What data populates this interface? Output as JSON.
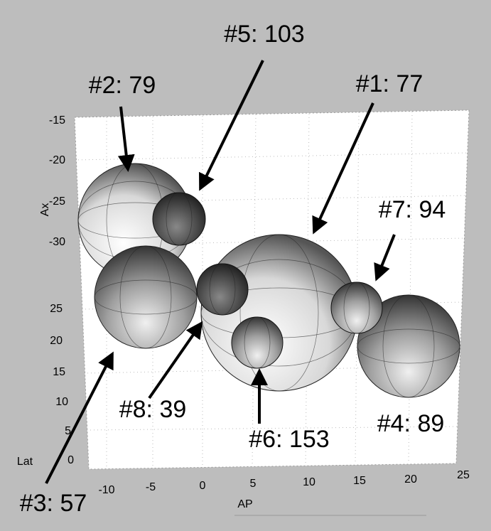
{
  "labels": [
    "#5: 103",
    "#2: 79",
    "#1: 77",
    "#7: 94",
    "#8: 39",
    "#6: 153",
    "#4: 89",
    "#3: 57"
  ],
  "axes": {
    "ax": {
      "title": "Ax",
      "ticks": [
        "-15",
        "-20",
        "-25",
        "-30"
      ]
    },
    "lat": {
      "title": "Lat",
      "ticks": [
        "25",
        "20",
        "15",
        "10",
        "5",
        "0"
      ]
    },
    "ap": {
      "title": "AP",
      "ticks": [
        "-10",
        "-5",
        "0",
        "5",
        "10",
        "15",
        "20",
        "25"
      ]
    }
  }
}
